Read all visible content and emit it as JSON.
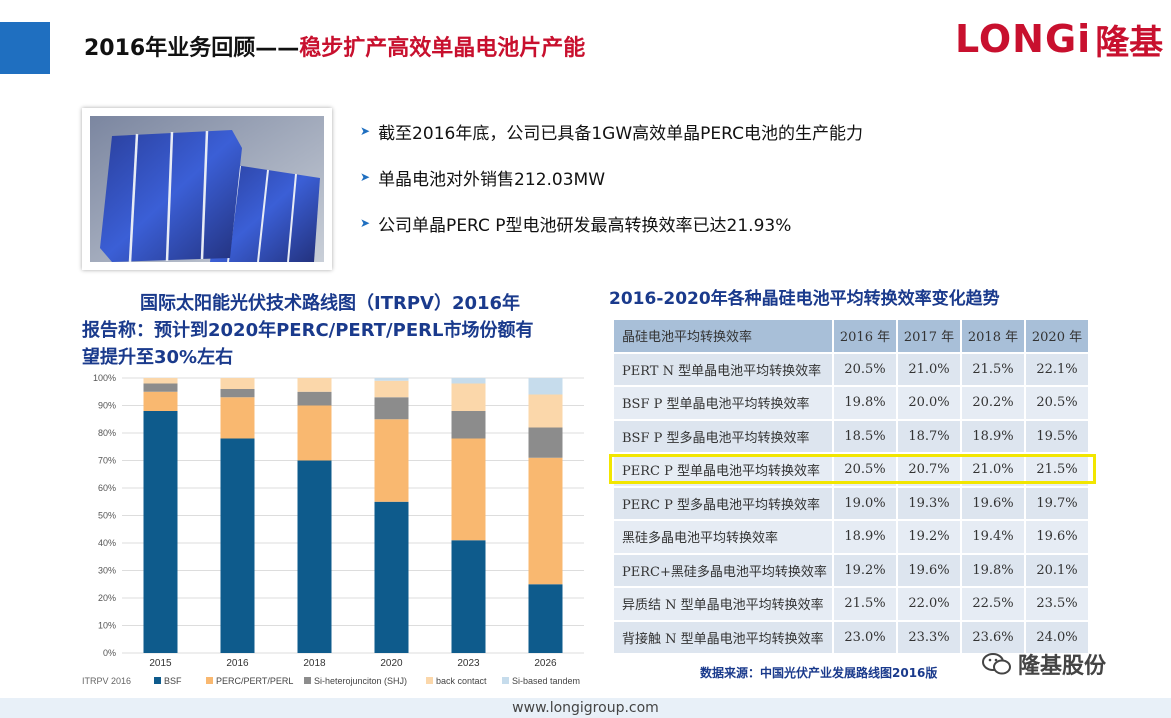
{
  "header": {
    "title_prefix": "2016年业务回顾——",
    "title_highlight": "稳步扩产高效单晶电池片产能",
    "logo_en": "LONGi",
    "logo_cn": "隆基"
  },
  "bullets": [
    "截至2016年底，公司已具备1GW高效单晶PERC电池的生产能力",
    "单晶电池对外销售212.03MW",
    "公司单晶PERC P型电池研发最高转换效率已达21.93%"
  ],
  "itrpv_note": {
    "line1": "国际太阳能光伏技术路线图（ITRPV）2016年",
    "line2": "报告称：预计到2020年PERC/PERT/PERL市场份额有",
    "line3": "望提升至30%左右"
  },
  "chart_data": {
    "type": "bar",
    "stacked": true,
    "categories": [
      "2015",
      "2016",
      "2018",
      "2020",
      "2023",
      "2026"
    ],
    "series": [
      {
        "name": "BSF",
        "color": "#0e5b8c",
        "values": [
          88,
          78,
          70,
          55,
          41,
          25
        ]
      },
      {
        "name": "PERC/PERT/PERL",
        "color": "#f9b870",
        "values": [
          7,
          15,
          20,
          30,
          37,
          46
        ]
      },
      {
        "name": "Si-heterojunciton (SHJ)",
        "color": "#8c8c8c",
        "values": [
          3,
          3,
          5,
          8,
          10,
          11
        ]
      },
      {
        "name": "back contact",
        "color": "#fbd7aa",
        "values": [
          2,
          4,
          5,
          6,
          10,
          12
        ]
      },
      {
        "name": "Si-based tandem",
        "color": "#c6dcec",
        "values": [
          0,
          0,
          0,
          1,
          2,
          6
        ]
      }
    ],
    "yticks": [
      "0%",
      "10%",
      "20%",
      "30%",
      "40%",
      "50%",
      "60%",
      "70%",
      "80%",
      "90%",
      "100%"
    ],
    "ylim": [
      0,
      100
    ],
    "source_label": "ITRPV 2016",
    "grid": true,
    "legend_position": "bottom"
  },
  "table": {
    "title": "2016-2020年各种晶硅电池平均转换效率变化趋势",
    "headers": [
      "晶硅电池平均转换效率",
      "2016 年",
      "2017 年",
      "2018 年",
      "2020 年"
    ],
    "rows": [
      [
        "PERT  N 型单晶电池平均转换效率",
        "20.5%",
        "21.0%",
        "21.5%",
        "22.1%"
      ],
      [
        "BSF  P 型单晶电池平均转换效率",
        "19.8%",
        "20.0%",
        "20.2%",
        "20.5%"
      ],
      [
        "BSF P 型多晶电池平均转换效率",
        "18.5%",
        "18.7%",
        "18.9%",
        "19.5%"
      ],
      [
        "PERC P 型单晶电池平均转换效率",
        "20.5%",
        "20.7%",
        "21.0%",
        "21.5%"
      ],
      [
        "PERC P 型多晶电池平均转换效率",
        "19.0%",
        "19.3%",
        "19.6%",
        "19.7%"
      ],
      [
        "黑硅多晶电池平均转换效率",
        "18.9%",
        "19.2%",
        "19.4%",
        "19.6%"
      ],
      [
        "PERC+黑硅多晶电池平均转换效率",
        "19.2%",
        "19.6%",
        "19.8%",
        "20.1%"
      ],
      [
        "异质结 N 型单晶电池平均转换效率",
        "21.5%",
        "22.0%",
        "22.5%",
        "23.5%"
      ],
      [
        "背接触 N 型单晶电池平均转换效率",
        "23.0%",
        "23.3%",
        "23.6%",
        "24.0%"
      ]
    ],
    "source": "数据来源：中国光伏产业发展路线图2016版"
  },
  "wechat_account": "隆基股份",
  "footer_url": "www.longigroup.com"
}
